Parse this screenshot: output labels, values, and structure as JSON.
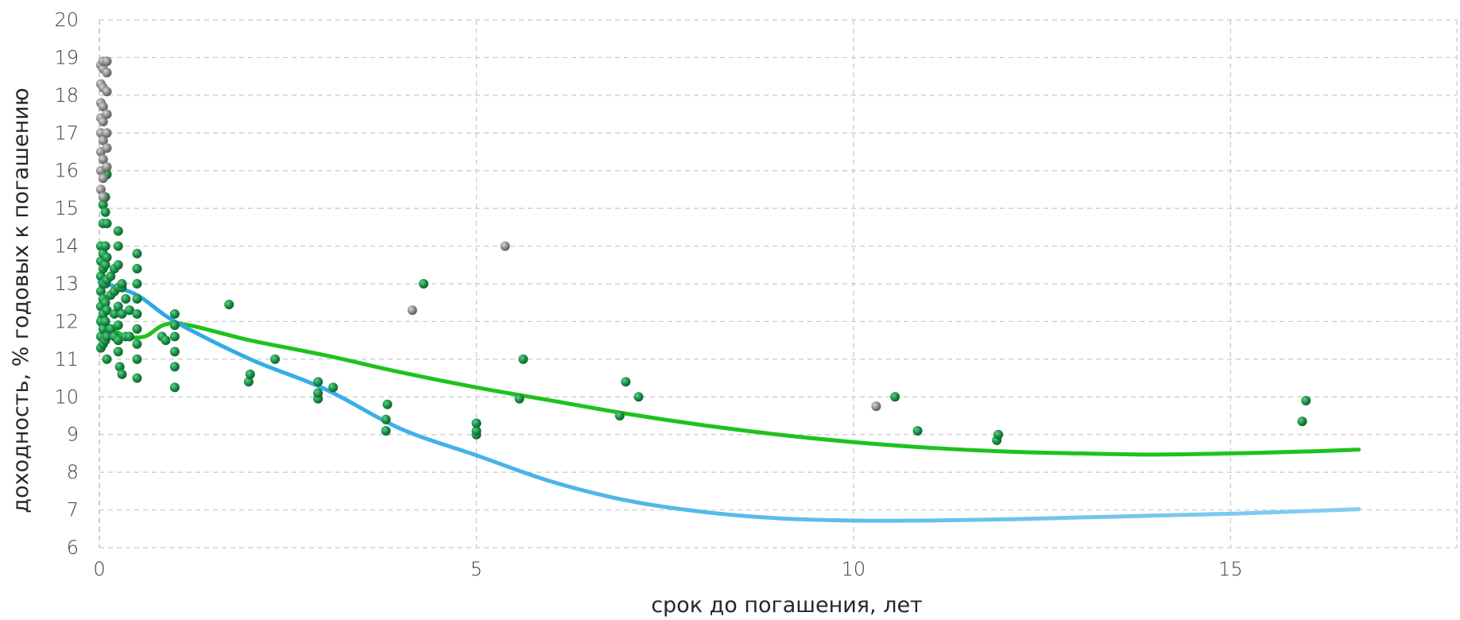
{
  "chart_data": {
    "type": "scatter",
    "xlabel": "срок до погашения, лет",
    "ylabel": "доходность, % годовых к погашению",
    "xlim": [
      0,
      18
    ],
    "ylim": [
      6,
      20
    ],
    "x_ticks": [
      0,
      5,
      10,
      15
    ],
    "y_ticks": [
      6,
      7,
      8,
      9,
      10,
      11,
      12,
      13,
      14,
      15,
      16,
      17,
      18,
      19,
      20
    ],
    "grid": true,
    "legend": "none",
    "colors": {
      "green_points": "#1a8f45",
      "grey_points": "#8c8c8c",
      "green_curve": "#1ec21e",
      "blue_curve_start": "#2aa7e6",
      "blue_curve_end": "#86cdef",
      "grid": "#c8c8c8"
    },
    "series": [
      {
        "kind": "points",
        "color_key": "green_points",
        "points": [
          [
            0.02,
            11.3
          ],
          [
            0.02,
            11.6
          ],
          [
            0.02,
            12.0
          ],
          [
            0.02,
            12.4
          ],
          [
            0.02,
            12.8
          ],
          [
            0.02,
            13.2
          ],
          [
            0.02,
            13.6
          ],
          [
            0.02,
            14.0
          ],
          [
            0.05,
            11.4
          ],
          [
            0.05,
            11.8
          ],
          [
            0.05,
            12.2
          ],
          [
            0.05,
            12.6
          ],
          [
            0.05,
            13.0
          ],
          [
            0.05,
            13.4
          ],
          [
            0.05,
            13.8
          ],
          [
            0.05,
            14.6
          ],
          [
            0.05,
            15.1
          ],
          [
            0.08,
            11.5
          ],
          [
            0.08,
            12.0
          ],
          [
            0.08,
            12.5
          ],
          [
            0.08,
            13.0
          ],
          [
            0.08,
            13.5
          ],
          [
            0.08,
            14.0
          ],
          [
            0.08,
            14.9
          ],
          [
            0.08,
            15.3
          ],
          [
            0.08,
            16.0
          ],
          [
            0.1,
            11.0
          ],
          [
            0.1,
            11.6
          ],
          [
            0.1,
            12.3
          ],
          [
            0.1,
            13.1
          ],
          [
            0.1,
            13.7
          ],
          [
            0.1,
            14.6
          ],
          [
            0.1,
            15.9
          ],
          [
            0.15,
            11.8
          ],
          [
            0.15,
            12.7
          ],
          [
            0.15,
            13.2
          ],
          [
            0.2,
            11.6
          ],
          [
            0.2,
            12.2
          ],
          [
            0.2,
            12.8
          ],
          [
            0.2,
            13.4
          ],
          [
            0.25,
            11.2
          ],
          [
            0.25,
            11.5
          ],
          [
            0.25,
            11.9
          ],
          [
            0.25,
            12.4
          ],
          [
            0.25,
            12.9
          ],
          [
            0.25,
            13.5
          ],
          [
            0.25,
            14.0
          ],
          [
            0.25,
            14.4
          ],
          [
            0.27,
            10.8
          ],
          [
            0.3,
            10.6
          ],
          [
            0.3,
            12.2
          ],
          [
            0.3,
            12.9
          ],
          [
            0.3,
            13.0
          ],
          [
            0.35,
            11.6
          ],
          [
            0.35,
            12.6
          ],
          [
            0.4,
            11.6
          ],
          [
            0.4,
            12.3
          ],
          [
            0.5,
            10.5
          ],
          [
            0.5,
            11.0
          ],
          [
            0.5,
            11.4
          ],
          [
            0.5,
            11.8
          ],
          [
            0.5,
            12.2
          ],
          [
            0.5,
            12.6
          ],
          [
            0.5,
            13.0
          ],
          [
            0.5,
            13.4
          ],
          [
            0.5,
            13.8
          ],
          [
            0.83,
            11.6
          ],
          [
            0.88,
            11.5
          ],
          [
            1.0,
            10.25
          ],
          [
            1.0,
            10.8
          ],
          [
            1.0,
            11.2
          ],
          [
            1.0,
            11.6
          ],
          [
            1.0,
            11.9
          ],
          [
            1.0,
            12.2
          ],
          [
            1.72,
            12.45
          ],
          [
            1.98,
            10.4
          ],
          [
            2.0,
            10.6
          ],
          [
            2.33,
            11.0
          ],
          [
            2.9,
            9.95
          ],
          [
            2.9,
            10.1
          ],
          [
            2.9,
            10.4
          ],
          [
            3.1,
            10.25
          ],
          [
            3.8,
            9.1
          ],
          [
            3.8,
            9.4
          ],
          [
            3.82,
            9.8
          ],
          [
            4.3,
            13.0
          ],
          [
            5.0,
            9.0
          ],
          [
            5.0,
            9.1
          ],
          [
            5.0,
            9.3
          ],
          [
            5.57,
            9.95
          ],
          [
            5.62,
            11.0
          ],
          [
            6.9,
            9.5
          ],
          [
            6.98,
            10.4
          ],
          [
            7.15,
            10.0
          ],
          [
            10.55,
            10.0
          ],
          [
            10.85,
            9.1
          ],
          [
            11.9,
            8.85
          ],
          [
            11.92,
            9.0
          ],
          [
            15.95,
            9.35
          ],
          [
            16.0,
            9.9
          ]
        ]
      },
      {
        "kind": "points",
        "color_key": "grey_points",
        "points": [
          [
            0.02,
            15.5
          ],
          [
            0.02,
            16.0
          ],
          [
            0.02,
            16.5
          ],
          [
            0.02,
            17.0
          ],
          [
            0.02,
            17.4
          ],
          [
            0.02,
            17.8
          ],
          [
            0.02,
            18.3
          ],
          [
            0.02,
            18.8
          ],
          [
            0.05,
            15.3
          ],
          [
            0.05,
            15.8
          ],
          [
            0.05,
            16.3
          ],
          [
            0.05,
            16.8
          ],
          [
            0.05,
            17.3
          ],
          [
            0.05,
            17.7
          ],
          [
            0.05,
            18.2
          ],
          [
            0.05,
            18.7
          ],
          [
            0.05,
            18.9
          ],
          [
            0.1,
            16.1
          ],
          [
            0.1,
            16.6
          ],
          [
            0.1,
            17.0
          ],
          [
            0.1,
            17.5
          ],
          [
            0.1,
            18.1
          ],
          [
            0.1,
            18.6
          ],
          [
            0.1,
            18.9
          ],
          [
            4.15,
            12.3
          ],
          [
            5.38,
            14.0
          ],
          [
            10.3,
            9.75
          ]
        ]
      },
      {
        "kind": "curve",
        "color_key": "green_curve",
        "points": [
          [
            0,
            12.1
          ],
          [
            0.3,
            11.65
          ],
          [
            0.6,
            11.6
          ],
          [
            1.0,
            11.95
          ],
          [
            2.0,
            11.5
          ],
          [
            3.0,
            11.1
          ],
          [
            4.0,
            10.65
          ],
          [
            5.0,
            10.25
          ],
          [
            6.0,
            9.9
          ],
          [
            7.0,
            9.55
          ],
          [
            8.0,
            9.25
          ],
          [
            9.0,
            9.0
          ],
          [
            10.0,
            8.8
          ],
          [
            11.0,
            8.65
          ],
          [
            12.0,
            8.55
          ],
          [
            13.0,
            8.5
          ],
          [
            14.0,
            8.47
          ],
          [
            15.0,
            8.5
          ],
          [
            16.0,
            8.55
          ],
          [
            16.7,
            8.6
          ]
        ]
      },
      {
        "kind": "curve",
        "color_key": "blue_curve_start",
        "gradient_to_key": "blue_curve_end",
        "points": [
          [
            0,
            13.05
          ],
          [
            0.5,
            12.7
          ],
          [
            1.0,
            12.0
          ],
          [
            2.0,
            11.0
          ],
          [
            3.0,
            10.2
          ],
          [
            4.0,
            9.15
          ],
          [
            5.0,
            8.45
          ],
          [
            6.0,
            7.75
          ],
          [
            7.0,
            7.25
          ],
          [
            8.0,
            6.95
          ],
          [
            9.0,
            6.78
          ],
          [
            10.0,
            6.72
          ],
          [
            11.0,
            6.72
          ],
          [
            12.0,
            6.75
          ],
          [
            13.0,
            6.8
          ],
          [
            14.0,
            6.85
          ],
          [
            15.0,
            6.9
          ],
          [
            16.0,
            6.97
          ],
          [
            16.7,
            7.02
          ]
        ]
      }
    ]
  }
}
